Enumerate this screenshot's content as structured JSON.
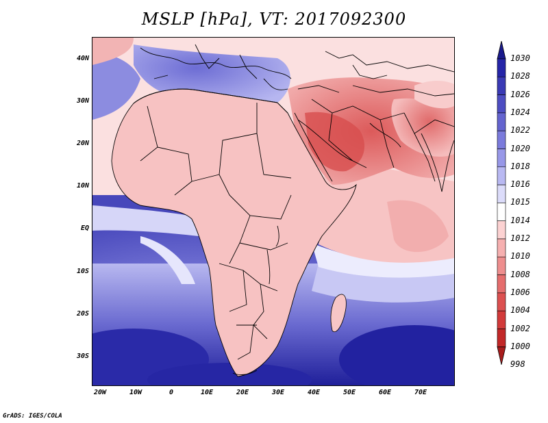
{
  "title": "MSLP [hPa], VT: 2017092300",
  "credit": "GrADS: IGES/COLA",
  "lat_labels": [
    "40N",
    "30N",
    "20N",
    "10N",
    "EQ",
    "10S",
    "20S",
    "30S"
  ],
  "lon_labels": [
    "20W",
    "10W",
    "0",
    "10E",
    "20E",
    "30E",
    "40E",
    "50E",
    "60E",
    "70E"
  ],
  "colorbar": {
    "levels": [
      "1030",
      "1028",
      "1026",
      "1024",
      "1022",
      "1020",
      "1018",
      "1016",
      "1015",
      "1014",
      "1012",
      "1010",
      "1008",
      "1006",
      "1004",
      "1002",
      "1000",
      "998"
    ],
    "colors": [
      "#1a1a8c",
      "#2525a8",
      "#3a3ab5",
      "#4d4dc2",
      "#6464cf",
      "#7b7bdc",
      "#9898e8",
      "#b9b9f2",
      "#dcdcfa",
      "#ffffff",
      "#fcd2d2",
      "#f6b0b0",
      "#ee8e8e",
      "#e56d6d",
      "#dc5050",
      "#d23a3a",
      "#c22828",
      "#a81c1c"
    ]
  },
  "map": {
    "ocean_colors": {
      "deep": "#2b2baa",
      "mid": "#5a5ac8",
      "light": "#a8a8ec",
      "pale": "#e4e4fb"
    },
    "land_colors": {
      "low": "#e06464",
      "mid": "#ee9a9a",
      "high": "#f8caca"
    },
    "boundary_color": "#000000"
  }
}
